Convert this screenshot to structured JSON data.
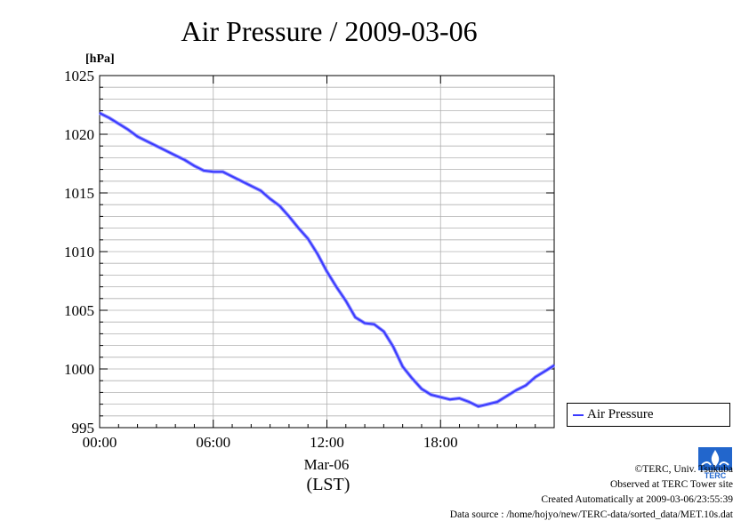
{
  "chart_data": {
    "type": "line",
    "title": "Air Pressure / 2009-03-06",
    "ylabel": "[hPa]",
    "xlabel_date": "Mar-06",
    "xlabel_tz": "(LST)",
    "ylim": [
      995,
      1025
    ],
    "xlim": [
      0,
      24
    ],
    "y_ticks": [
      "995",
      "1000",
      "1005",
      "1010",
      "1015",
      "1020",
      "1025"
    ],
    "x_ticks": [
      "00:00",
      "06:00",
      "12:00",
      "18:00"
    ],
    "grid": true,
    "legend_position": "right",
    "series": [
      {
        "name": "Air Pressure",
        "color": "#3a3aff",
        "x": [
          0,
          0.5,
          1,
          1.5,
          2,
          2.5,
          3,
          3.5,
          4,
          4.5,
          5,
          5.5,
          6,
          6.5,
          7,
          7.5,
          8,
          8.5,
          9,
          9.5,
          10,
          10.5,
          11,
          11.5,
          12,
          12.5,
          13,
          13.5,
          14,
          14.5,
          15,
          15.5,
          16,
          16.5,
          17,
          17.5,
          18,
          18.5,
          19,
          19.5,
          20,
          20.5,
          21,
          21.5,
          22,
          22.5,
          23,
          23.5,
          24
        ],
        "values": [
          1021.8,
          1021.4,
          1020.9,
          1020.4,
          1019.8,
          1019.4,
          1019.0,
          1018.6,
          1018.2,
          1017.8,
          1017.3,
          1016.9,
          1016.8,
          1016.8,
          1016.4,
          1016.0,
          1015.6,
          1015.2,
          1014.5,
          1013.9,
          1013.0,
          1012.0,
          1011.1,
          1009.8,
          1008.3,
          1007.0,
          1005.8,
          1004.4,
          1003.9,
          1003.8,
          1003.2,
          1001.9,
          1000.2,
          999.2,
          998.3,
          997.8,
          997.6,
          997.4,
          997.5,
          997.2,
          996.8,
          997.0,
          997.2,
          997.7,
          998.2,
          998.6,
          999.3,
          999.8,
          1000.3
        ]
      }
    ]
  },
  "footer": {
    "copyright": "©TERC, Univ. Tsukuba",
    "observed": "Observed at TERC Tower site",
    "created": "Created Automatically at 2009-03-06/23:55:39",
    "source": "Data source : /home/hojyo/new/TERC-data/sorted_data/MET.10s.dat"
  },
  "logo": {
    "text": "TERC",
    "color": "#2266cc"
  }
}
